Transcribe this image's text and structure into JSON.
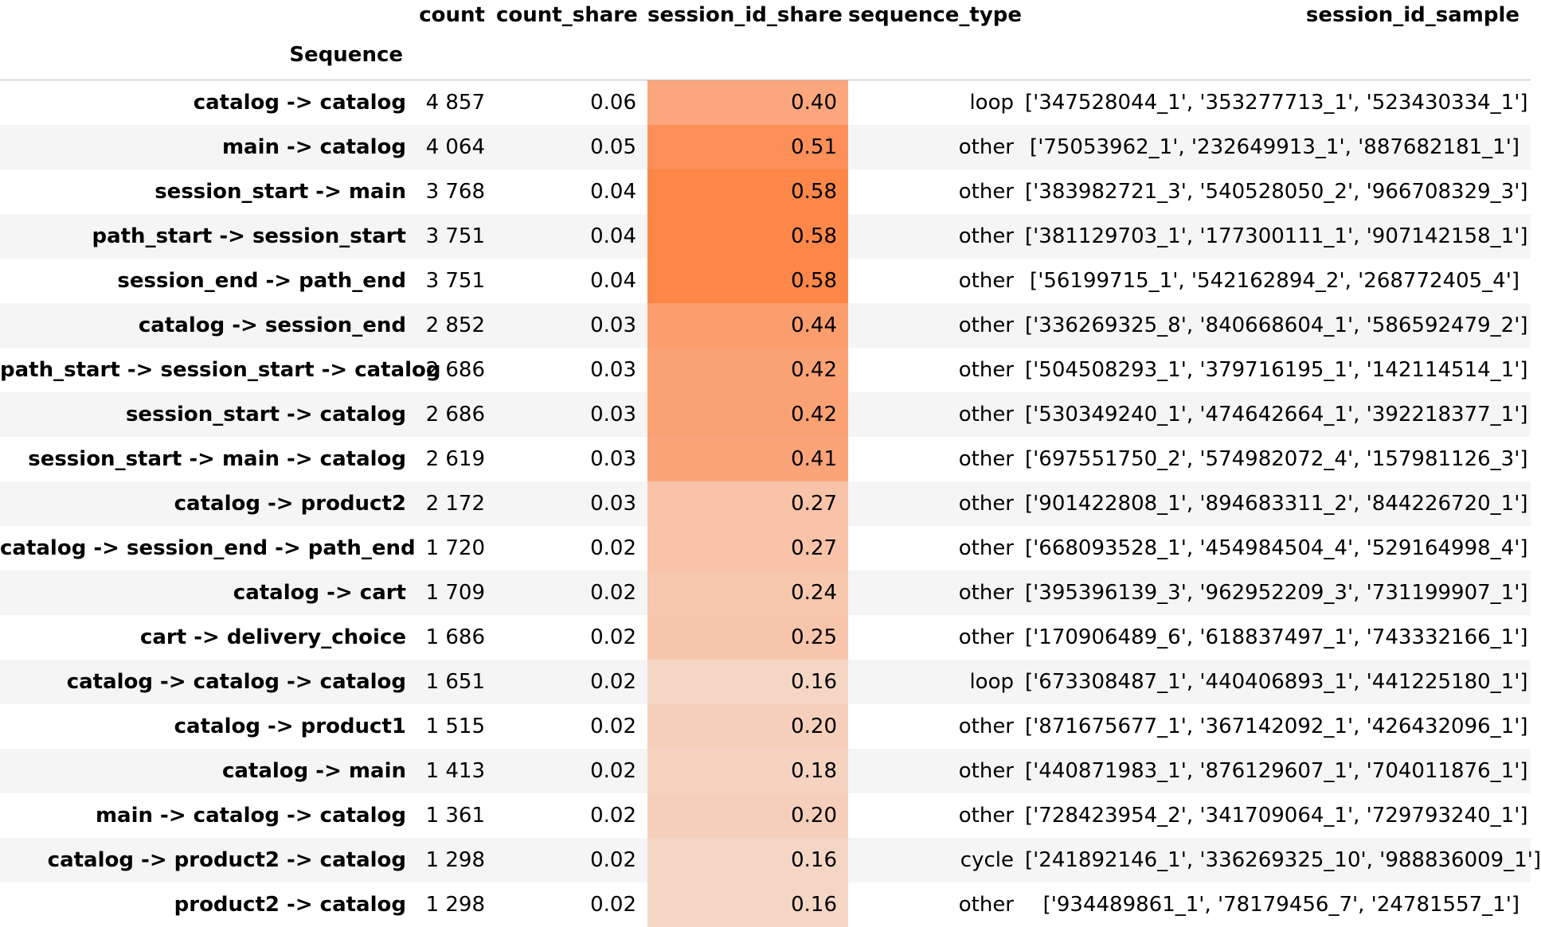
{
  "table": {
    "index_name": "Sequence",
    "columns": [
      "count",
      "count_share",
      "session_id_share",
      "sequence_type",
      "session_id_sample"
    ],
    "rows": [
      {
        "sequence": "catalog -> catalog",
        "count": "4 857",
        "count_share": "0.06",
        "session_id_share": "0.40",
        "sequence_type": "loop",
        "session_id_sample": "['347528044_1', '353277713_1', '523430334_1']",
        "heat_color": "#fba67d"
      },
      {
        "sequence": "main -> catalog",
        "count": "4 064",
        "count_share": "0.05",
        "session_id_share": "0.51",
        "sequence_type": "other",
        "session_id_sample": "['75053962_1', '232649913_1', '887682181_1']",
        "heat_color": "#fc9058"
      },
      {
        "sequence": "session_start -> main",
        "count": "3 768",
        "count_share": "0.04",
        "session_id_share": "0.58",
        "sequence_type": "other",
        "session_id_sample": "['383982721_3', '540528050_2', '966708329_3']",
        "heat_color": "#fd8748"
      },
      {
        "sequence": "path_start -> session_start",
        "count": "3 751",
        "count_share": "0.04",
        "session_id_share": "0.58",
        "sequence_type": "other",
        "session_id_sample": "['381129703_1', '177300111_1', '907142158_1']",
        "heat_color": "#fd8748"
      },
      {
        "sequence": "session_end -> path_end",
        "count": "3 751",
        "count_share": "0.04",
        "session_id_share": "0.58",
        "sequence_type": "other",
        "session_id_sample": "['56199715_1', '542162894_2', '268772405_4']",
        "heat_color": "#fd8748"
      },
      {
        "sequence": "catalog -> session_end",
        "count": "2 852",
        "count_share": "0.03",
        "session_id_share": "0.44",
        "sequence_type": "other",
        "session_id_sample": "['336269325_8', '840668604_1', '586592479_2']",
        "heat_color": "#fc9d6d"
      },
      {
        "sequence": "path_start -> session_start -> catalog",
        "count": "2 686",
        "count_share": "0.03",
        "session_id_share": "0.42",
        "sequence_type": "other",
        "session_id_sample": "['504508293_1', '379716195_1', '142114514_1']",
        "heat_color": "#fba275"
      },
      {
        "sequence": "session_start -> catalog",
        "count": "2 686",
        "count_share": "0.03",
        "session_id_share": "0.42",
        "sequence_type": "other",
        "session_id_sample": "['530349240_1', '474642664_1', '392218377_1']",
        "heat_color": "#fba275"
      },
      {
        "sequence": "session_start -> main -> catalog",
        "count": "2 619",
        "count_share": "0.03",
        "session_id_share": "0.41",
        "sequence_type": "other",
        "session_id_sample": "['697551750_2', '574982072_4', '157981126_3']",
        "heat_color": "#fba479"
      },
      {
        "sequence": "catalog -> product2",
        "count": "2 172",
        "count_share": "0.03",
        "session_id_share": "0.27",
        "sequence_type": "other",
        "session_id_sample": "['901422808_1', '894683311_2', '844226720_1']",
        "heat_color": "#f8c3a8"
      },
      {
        "sequence": "catalog -> session_end -> path_end",
        "count": "1 720",
        "count_share": "0.02",
        "session_id_share": "0.27",
        "sequence_type": "other",
        "session_id_sample": "['668093528_1', '454984504_4', '529164998_4']",
        "heat_color": "#f8c3a8"
      },
      {
        "sequence": "catalog -> cart",
        "count": "1 709",
        "count_share": "0.02",
        "session_id_share": "0.24",
        "sequence_type": "other",
        "session_id_sample": "['395396139_3', '962952209_3', '731199907_1']",
        "heat_color": "#f7c7ae"
      },
      {
        "sequence": "cart -> delivery_choice",
        "count": "1 686",
        "count_share": "0.02",
        "session_id_share": "0.25",
        "sequence_type": "other",
        "session_id_sample": "['170906489_6', '618837497_1', '743332166_1']",
        "heat_color": "#f7c5ab"
      },
      {
        "sequence": "catalog -> catalog -> catalog",
        "count": "1 651",
        "count_share": "0.02",
        "session_id_share": "0.16",
        "sequence_type": "loop",
        "session_id_sample": "['673308487_1', '440406893_1', '441225180_1']",
        "heat_color": "#f5d6c5"
      },
      {
        "sequence": "catalog -> product1",
        "count": "1 515",
        "count_share": "0.02",
        "session_id_share": "0.20",
        "sequence_type": "other",
        "session_id_sample": "['871675677_1', '367142092_1', '426432096_1']",
        "heat_color": "#f6cfbb"
      },
      {
        "sequence": "catalog -> main",
        "count": "1 413",
        "count_share": "0.02",
        "session_id_share": "0.18",
        "sequence_type": "other",
        "session_id_sample": "['440871983_1', '876129607_1', '704011876_1']",
        "heat_color": "#f5d3c0"
      },
      {
        "sequence": "main -> catalog -> catalog",
        "count": "1 361",
        "count_share": "0.02",
        "session_id_share": "0.20",
        "sequence_type": "other",
        "session_id_sample": "['728423954_2', '341709064_1', '729793240_1']",
        "heat_color": "#f6cfbb"
      },
      {
        "sequence": "catalog -> product2 -> catalog",
        "count": "1 298",
        "count_share": "0.02",
        "session_id_share": "0.16",
        "sequence_type": "cycle",
        "session_id_sample": "['241892146_1', '336269325_10', '988836009_1']",
        "heat_color": "#f5d6c5"
      },
      {
        "sequence": "product2 -> catalog",
        "count": "1 298",
        "count_share": "0.02",
        "session_id_share": "0.16",
        "sequence_type": "other",
        "session_id_sample": "['934489861_1', '78179456_7', '24781557_1']",
        "heat_color": "#f5d6c5"
      }
    ]
  }
}
